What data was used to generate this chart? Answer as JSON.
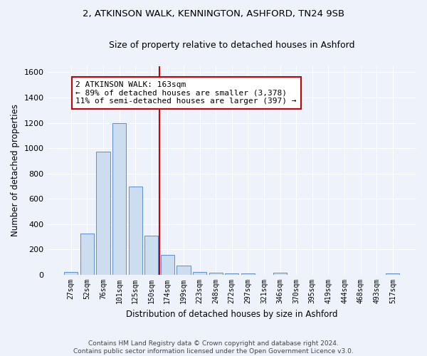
{
  "title1": "2, ATKINSON WALK, KENNINGTON, ASHFORD, TN24 9SB",
  "title2": "Size of property relative to detached houses in Ashford",
  "xlabel": "Distribution of detached houses by size in Ashford",
  "ylabel": "Number of detached properties",
  "categories": [
    "27sqm",
    "52sqm",
    "76sqm",
    "101sqm",
    "125sqm",
    "150sqm",
    "174sqm",
    "199sqm",
    "223sqm",
    "248sqm",
    "272sqm",
    "297sqm",
    "321sqm",
    "346sqm",
    "370sqm",
    "395sqm",
    "419sqm",
    "444sqm",
    "468sqm",
    "493sqm",
    "517sqm"
  ],
  "values": [
    25,
    325,
    970,
    1200,
    700,
    310,
    155,
    75,
    25,
    15,
    10,
    10,
    0,
    15,
    0,
    0,
    0,
    0,
    0,
    0,
    10
  ],
  "bar_color": "#ccddf0",
  "bar_edge_color": "#5b8fd4",
  "vline_color": "#cc0000",
  "annotation_text": "2 ATKINSON WALK: 163sqm\n← 89% of detached houses are smaller (3,378)\n11% of semi-detached houses are larger (397) →",
  "annotation_box_color": "white",
  "annotation_box_edge": "#cc0000",
  "ylim": [
    0,
    1650
  ],
  "yticks": [
    0,
    200,
    400,
    600,
    800,
    1000,
    1200,
    1400,
    1600
  ],
  "footer": "Contains HM Land Registry data © Crown copyright and database right 2024.\nContains public sector information licensed under the Open Government Licence v3.0.",
  "bg_color": "#edf2fb",
  "plot_bg_color": "#edf2fb",
  "grid_color": "#ffffff",
  "title_fontsize": 9.5,
  "subtitle_fontsize": 9,
  "annotation_fontsize": 8
}
